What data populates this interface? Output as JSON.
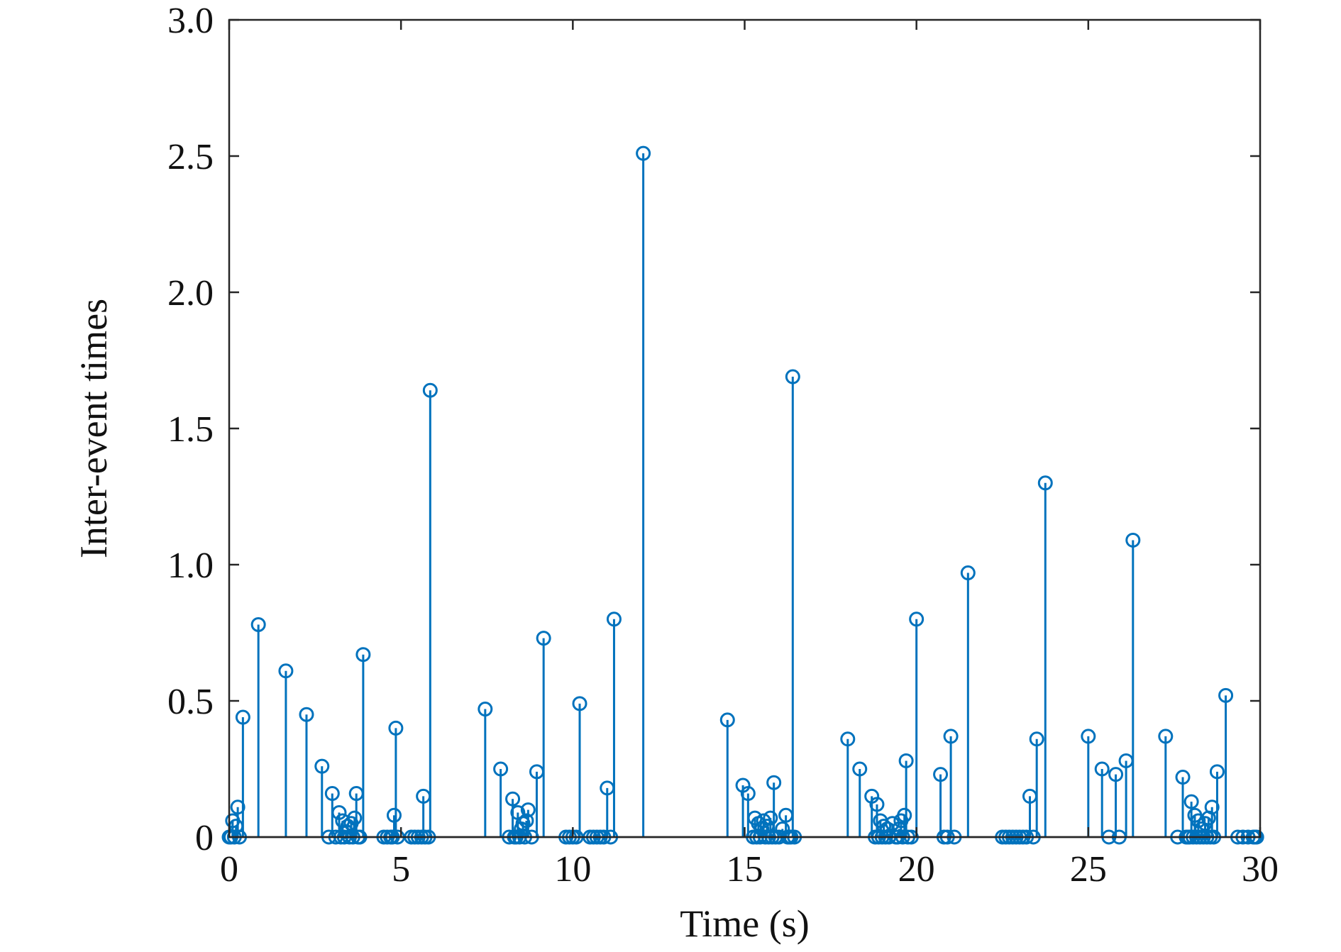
{
  "chart_data": {
    "type": "stem",
    "title": "",
    "xlabel": "Time (s)",
    "ylabel": "Inter-event times",
    "xlim": [
      0,
      30
    ],
    "ylim": [
      0,
      3.0
    ],
    "xticks": [
      0,
      5,
      10,
      15,
      20,
      25,
      30
    ],
    "xtick_labels": [
      "0",
      "5",
      "10",
      "15",
      "20",
      "25",
      "30"
    ],
    "yticks": [
      0,
      0.5,
      1.0,
      1.5,
      2.0,
      2.5,
      3.0
    ],
    "ytick_labels": [
      "0",
      "0.5",
      "1.0",
      "1.5",
      "2.0",
      "2.5",
      "3.0"
    ],
    "grid": false,
    "legend": "none",
    "color": "#0072BD",
    "series": [
      {
        "name": "Inter-event times",
        "x": [
          0.0,
          0.05,
          0.1,
          0.15,
          0.2,
          0.25,
          0.3,
          0.4,
          0.85,
          1.65,
          2.25,
          2.7,
          2.9,
          3.0,
          3.1,
          3.2,
          3.25,
          3.3,
          3.35,
          3.4,
          3.45,
          3.5,
          3.55,
          3.6,
          3.65,
          3.7,
          3.75,
          3.8,
          3.9,
          4.5,
          4.6,
          4.7,
          4.75,
          4.8,
          4.85,
          4.9,
          5.3,
          5.4,
          5.5,
          5.6,
          5.65,
          5.7,
          5.8,
          5.85,
          7.45,
          7.9,
          8.15,
          8.25,
          8.3,
          8.35,
          8.4,
          8.45,
          8.5,
          8.55,
          8.6,
          8.65,
          8.7,
          8.8,
          8.95,
          9.15,
          9.8,
          9.9,
          10.0,
          10.1,
          10.2,
          10.5,
          10.6,
          10.7,
          10.8,
          10.9,
          11.0,
          11.1,
          11.2,
          12.05,
          14.5,
          14.95,
          15.1,
          15.25,
          15.3,
          15.35,
          15.4,
          15.45,
          15.5,
          15.55,
          15.6,
          15.65,
          15.7,
          15.75,
          15.8,
          15.85,
          15.9,
          16.0,
          16.1,
          16.2,
          16.25,
          16.3,
          16.35,
          16.4,
          16.45,
          18.0,
          18.35,
          18.7,
          18.8,
          18.85,
          18.9,
          18.95,
          19.0,
          19.05,
          19.1,
          19.15,
          19.2,
          19.3,
          19.4,
          19.45,
          19.5,
          19.55,
          19.6,
          19.65,
          19.7,
          19.75,
          19.85,
          20.0,
          20.7,
          20.8,
          20.9,
          21.0,
          21.1,
          21.5,
          22.5,
          22.6,
          22.7,
          22.8,
          22.9,
          23.0,
          23.1,
          23.2,
          23.3,
          23.4,
          23.5,
          23.75,
          25.0,
          25.4,
          25.6,
          25.8,
          25.9,
          26.1,
          26.3,
          27.25,
          27.6,
          27.75,
          27.85,
          27.9,
          27.95,
          28.0,
          28.05,
          28.1,
          28.15,
          28.2,
          28.25,
          28.3,
          28.35,
          28.4,
          28.45,
          28.5,
          28.55,
          28.6,
          28.65,
          28.75,
          29.0,
          29.35,
          29.5,
          29.65,
          29.8,
          29.85,
          29.9
        ],
        "y": [
          0.0,
          0.0,
          0.06,
          0.0,
          0.04,
          0.11,
          0.0,
          0.44,
          0.78,
          0.61,
          0.45,
          0.26,
          0.0,
          0.16,
          0.0,
          0.09,
          0.0,
          0.06,
          0.0,
          0.02,
          0.04,
          0.0,
          0.05,
          0.0,
          0.07,
          0.16,
          0.0,
          0.0,
          0.67,
          0.0,
          0.0,
          0.0,
          0.0,
          0.08,
          0.4,
          0.0,
          0.0,
          0.0,
          0.0,
          0.0,
          0.15,
          0.0,
          0.0,
          1.64,
          0.47,
          0.25,
          0.0,
          0.14,
          0.0,
          0.0,
          0.09,
          0.0,
          0.03,
          0.05,
          0.0,
          0.06,
          0.1,
          0.0,
          0.24,
          0.73,
          0.0,
          0.0,
          0.0,
          0.0,
          0.49,
          0.0,
          0.0,
          0.0,
          0.0,
          0.0,
          0.18,
          0.0,
          0.8,
          2.51,
          0.43,
          0.19,
          0.16,
          0.0,
          0.07,
          0.0,
          0.05,
          0.0,
          0.03,
          0.06,
          0.0,
          0.04,
          0.0,
          0.07,
          0.0,
          0.2,
          0.0,
          0.0,
          0.03,
          0.08,
          0.0,
          0.0,
          0.0,
          1.69,
          0.0,
          0.36,
          0.25,
          0.15,
          0.0,
          0.12,
          0.0,
          0.06,
          0.0,
          0.04,
          0.0,
          0.03,
          0.0,
          0.05,
          0.0,
          0.0,
          0.03,
          0.06,
          0.0,
          0.08,
          0.28,
          0.0,
          0.0,
          0.8,
          0.23,
          0.0,
          0.0,
          0.37,
          0.0,
          0.97,
          0.0,
          0.0,
          0.0,
          0.0,
          0.0,
          0.0,
          0.0,
          0.0,
          0.15,
          0.0,
          0.36,
          1.3,
          0.37,
          0.25,
          0.0,
          0.23,
          0.0,
          0.28,
          1.09,
          0.37,
          0.0,
          0.22,
          0.0,
          0.0,
          0.0,
          0.13,
          0.0,
          0.08,
          0.0,
          0.06,
          0.0,
          0.03,
          0.0,
          0.05,
          0.0,
          0.07,
          0.0,
          0.11,
          0.0,
          0.24,
          0.52,
          0.0,
          0.0,
          0.0,
          0.0,
          0.0,
          0.0
        ]
      }
    ]
  }
}
